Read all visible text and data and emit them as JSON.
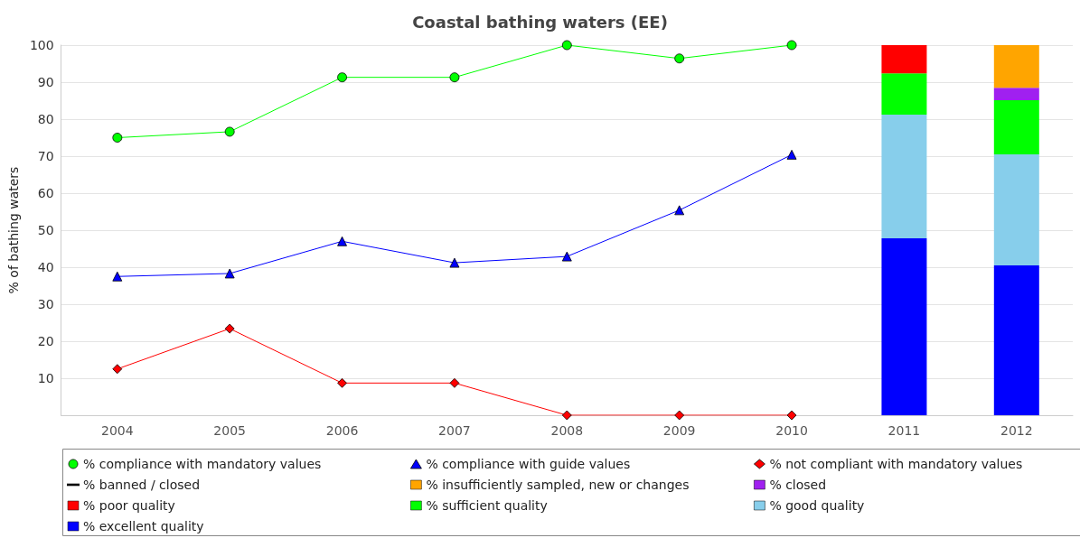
{
  "chart_data": {
    "type": "line",
    "title": "Coastal bathing waters (EE)",
    "ylabel": "% of bathing waters",
    "categories": [
      "2004",
      "2005",
      "2006",
      "2007",
      "2008",
      "2009",
      "2010",
      "2011",
      "2012"
    ],
    "ylim": [
      0,
      100
    ],
    "yticks": [
      10,
      20,
      30,
      40,
      50,
      60,
      70,
      80,
      90,
      100
    ],
    "grid": "y",
    "legend": "bottom",
    "stacked": true,
    "series": [
      {
        "name": "% compliance with mandatory values",
        "marker": "circle",
        "color": "#00ff00",
        "values": [
          75,
          76.6,
          91.3,
          91.3,
          100,
          96.4,
          100,
          null,
          null
        ]
      },
      {
        "name": "% compliance with guide values",
        "marker": "triangle",
        "color": "#0000ff",
        "values": [
          37.5,
          38.3,
          47,
          41.2,
          42.9,
          55.4,
          70.4,
          null,
          null
        ]
      },
      {
        "name": "% not compliant with mandatory values",
        "marker": "diamond",
        "color": "#ff0000",
        "values": [
          12.5,
          23.4,
          8.7,
          8.7,
          0,
          0,
          0,
          null,
          null
        ]
      },
      {
        "name": "% banned / closed",
        "marker": "none",
        "color": "#a020f0",
        "values": [
          null,
          null,
          null,
          null,
          null,
          null,
          null,
          null,
          null
        ]
      },
      {
        "name": "% excellent quality",
        "type": "bar",
        "color": "#0000ff",
        "values": [
          null,
          null,
          null,
          null,
          null,
          null,
          null,
          47.8,
          40.5
        ]
      },
      {
        "name": "% good quality",
        "type": "bar",
        "color": "#87ceeb",
        "values": [
          null,
          null,
          null,
          null,
          null,
          null,
          null,
          33.4,
          30
        ]
      },
      {
        "name": "% sufficient quality",
        "type": "bar",
        "color": "#00ff00",
        "values": [
          null,
          null,
          null,
          null,
          null,
          null,
          null,
          11.2,
          14.6
        ]
      },
      {
        "name": "% poor quality",
        "type": "bar",
        "color": "#ff0000",
        "values": [
          null,
          null,
          null,
          null,
          null,
          null,
          null,
          7.6,
          null
        ]
      },
      {
        "name": "% closed",
        "type": "bar",
        "color": "#a020f0",
        "values": [
          null,
          null,
          null,
          null,
          null,
          null,
          null,
          null,
          3.4
        ]
      },
      {
        "name": "% insufficiently sampled, new or changes",
        "type": "bar",
        "color": "#ffa500",
        "values": [
          null,
          null,
          null,
          null,
          null,
          null,
          null,
          null,
          11.5
        ]
      }
    ]
  }
}
